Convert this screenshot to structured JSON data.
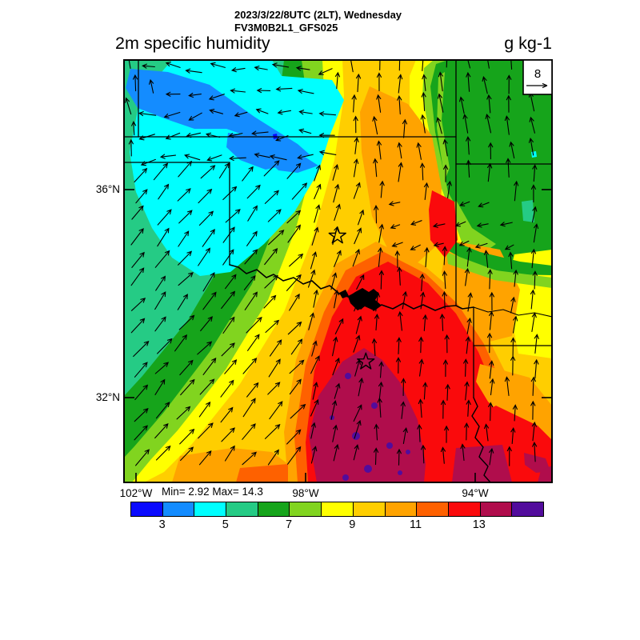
{
  "header": {
    "datetime_line": "2023/3/22/8UTC (2LT), Wednesday",
    "model_line": "FV3M0B2L1_GFS025",
    "variable_title": "2m specific humidity",
    "units_label": "g kg-1"
  },
  "map": {
    "vector_key_label": "8",
    "stats_label": "Min= 2.92 Max= 14.3",
    "markers": [
      {
        "type": "open-star",
        "lat": 35.11,
        "lon": -97.25
      },
      {
        "type": "open-star",
        "lat": 32.69,
        "lon": -96.58
      }
    ]
  },
  "axes": {
    "lat_ticks": [
      {
        "label": "36°N",
        "value": 36
      },
      {
        "label": "32°N",
        "value": 32
      }
    ],
    "lon_ticks": [
      {
        "label": "102°W",
        "value": -102
      },
      {
        "label": "98°W",
        "value": -98
      },
      {
        "label": "94°W",
        "value": -94
      }
    ]
  },
  "colorbar": {
    "levels": [
      2,
      3,
      4,
      5,
      6,
      7,
      8,
      9,
      10,
      11,
      12,
      13,
      14,
      15
    ],
    "colors": [
      "#0a0afe",
      "#148cff",
      "#00ffff",
      "#25cb85",
      "#16a41b",
      "#81d41f",
      "#ffff00",
      "#ffce00",
      "#ffa300",
      "#fe6100",
      "#fa0a0c",
      "#b00d4c",
      "#520c9c"
    ],
    "tick_values": [
      3,
      5,
      7,
      9,
      11,
      13
    ]
  },
  "chart_data": {
    "type": "heatmap",
    "title": "2m specific humidity",
    "units": "g kg-1",
    "valid_time": "2023/3/22/8UTC (2LT), Wednesday",
    "model_run": "FV3M0B2L1_GFS025",
    "min": 2.92,
    "max": 14.3,
    "levels": [
      2,
      3,
      4,
      5,
      6,
      7,
      8,
      9,
      10,
      11,
      12,
      13,
      14,
      15
    ],
    "colors": [
      "#0a0afe",
      "#148cff",
      "#00ffff",
      "#25cb85",
      "#16a41b",
      "#81d41f",
      "#ffff00",
      "#ffce00",
      "#ffa300",
      "#fe6100",
      "#fa0a0c",
      "#b00d4c",
      "#520c9c"
    ],
    "colorbar_tick_labels": [
      "3",
      "5",
      "7",
      "9",
      "11",
      "13"
    ],
    "x_axis": {
      "label": "longitude",
      "ticks": [
        "102°W",
        "98°W",
        "94°W"
      ]
    },
    "y_axis": {
      "label": "latitude",
      "ticks": [
        "36°N",
        "32°N"
      ]
    },
    "wind_vector_reference": 8,
    "overlay": "wind vector arrows on regular grid; state borders; two open-star city markers; lake/river in black",
    "field_values_g_per_kg": [
      {
        "region": "far northwest (CO/KS border, blue patch)",
        "value": "3-4"
      },
      {
        "region": "northwest cyan area",
        "value": "4-5"
      },
      {
        "region": "Texas panhandle / west (teal-green)",
        "value": "5-6"
      },
      {
        "region": "northeast corner (green)",
        "value": "6-7"
      },
      {
        "region": "central band (yellow-gold)",
        "value": "8-10"
      },
      {
        "region": "central Oklahoma near first star",
        "value": "9-11"
      },
      {
        "region": "north-central Texas near second star (red)",
        "value": "11-13"
      },
      {
        "region": "south-central Texas maroon/purple core",
        "value": "13-15"
      },
      {
        "region": "east Arkansas/Louisiana side (yellow-gold)",
        "value": "8-10"
      }
    ]
  }
}
